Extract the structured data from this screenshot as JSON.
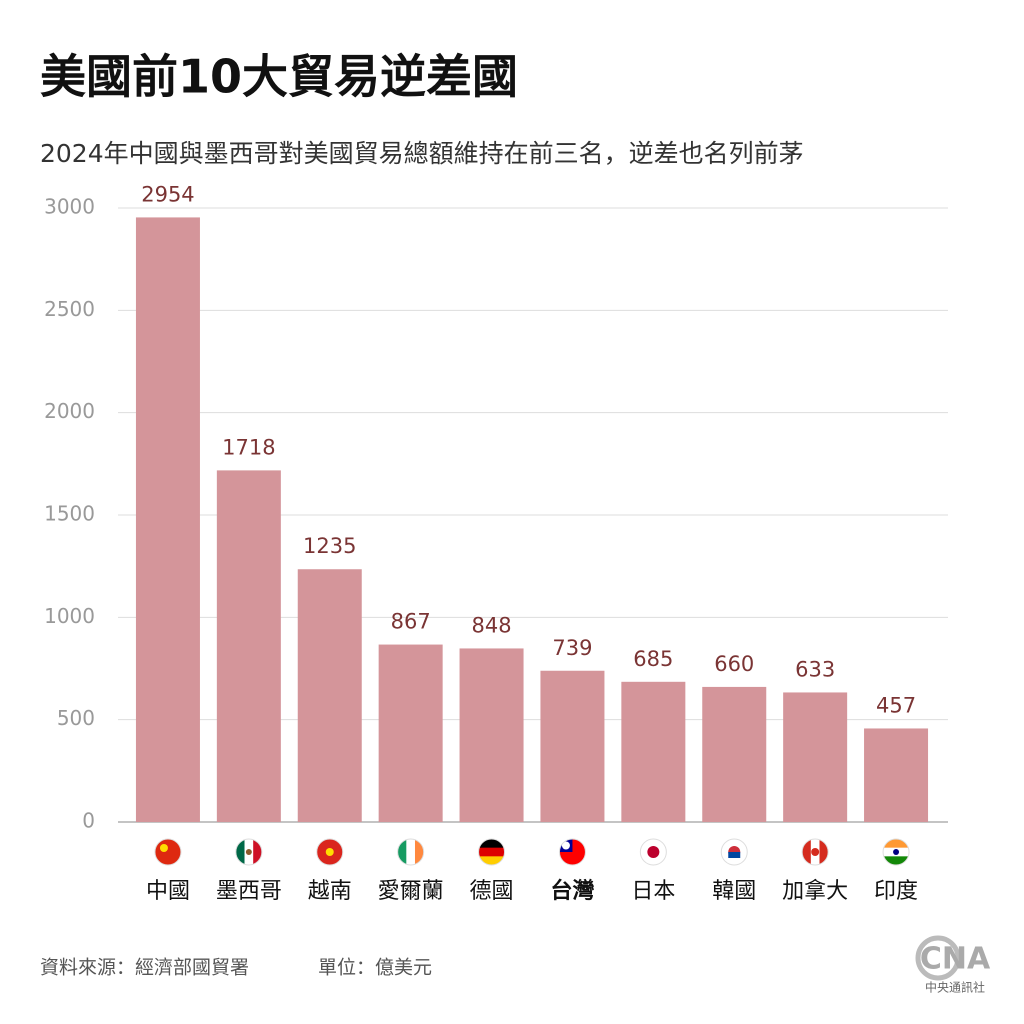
{
  "chart_data": {
    "type": "bar",
    "title": "美國前10大貿易逆差國",
    "subtitle": "2024年中國與墨西哥對美國貿易總額維持在前三名，逆差也名列前茅",
    "categories": [
      "中國",
      "墨西哥",
      "越南",
      "愛爾蘭",
      "德國",
      "台灣",
      "日本",
      "韓國",
      "加拿大",
      "印度"
    ],
    "values": [
      2954,
      1718,
      1235,
      867,
      848,
      739,
      685,
      660,
      633,
      457
    ],
    "color": "#d4959a",
    "value_label_color": "#7a3434",
    "category_label_colors": [
      "#111",
      "#111",
      "#111",
      "#111",
      "#111",
      "#7a3434",
      "#111",
      "#111",
      "#111",
      "#111"
    ],
    "ylim": [
      0,
      3000
    ],
    "yticks": [
      0,
      500,
      1000,
      1500,
      2000,
      2500,
      3000
    ],
    "grid": true,
    "source": "資料來源：經濟部國貿署",
    "unit": "單位：億美元",
    "logo": "CNA",
    "logo_caption": "中央通訊社"
  }
}
